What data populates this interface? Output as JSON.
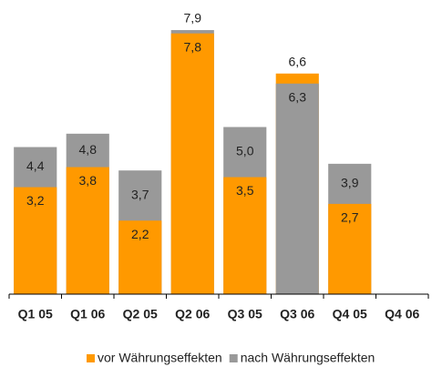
{
  "chart_data": {
    "type": "bar",
    "categories": [
      "Q1 05",
      "Q1 06",
      "Q2 05",
      "Q2 06",
      "Q3 05",
      "Q3 06",
      "Q4 05",
      "Q4 06"
    ],
    "series": [
      {
        "name": "vor Währungseffekten",
        "color": "#ff9900",
        "values": [
          3.2,
          3.8,
          2.2,
          7.8,
          3.5,
          6.6,
          2.7,
          null
        ],
        "value_labels": [
          "3,2",
          "3,8",
          "2,2",
          "7,8",
          "3,5",
          "6,6",
          "2,7",
          null
        ]
      },
      {
        "name": "nach Währungseffekten",
        "color": "#999999",
        "values": [
          4.4,
          4.8,
          3.7,
          7.9,
          5.0,
          6.3,
          3.9,
          null
        ],
        "value_labels": [
          "4,4",
          "4,8",
          "3,7",
          "7,9",
          "5,0",
          "6,3",
          "3,9",
          null
        ]
      }
    ],
    "ylim": [
      0,
      8.8
    ]
  }
}
